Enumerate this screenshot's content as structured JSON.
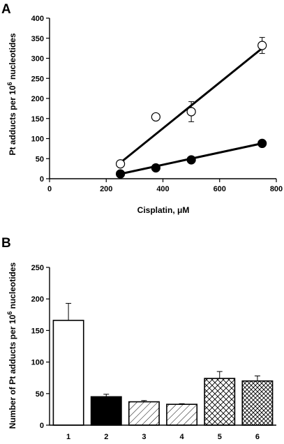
{
  "panel_labels": {
    "a": "A",
    "b": "B"
  },
  "chart_data": [
    {
      "panel": "A",
      "type": "scatter",
      "xlabel": "Cisplatin, μM",
      "ylabel_parts": [
        "Pt adducts per 10",
        "6",
        " nucleotides"
      ],
      "xlim": [
        0,
        800
      ],
      "ylim": [
        0,
        400
      ],
      "xticks": [
        0,
        200,
        400,
        600,
        800
      ],
      "yticks": [
        0,
        50,
        100,
        150,
        200,
        250,
        300,
        350,
        400
      ],
      "grid": false,
      "series": [
        {
          "marker": "open-circle",
          "x": [
            250,
            375,
            500,
            750
          ],
          "y": [
            37,
            154,
            167,
            332
          ],
          "err": [
            0,
            0,
            25,
            20
          ],
          "fit": {
            "x": [
              250,
              750
            ],
            "y": [
              40,
              325
            ]
          }
        },
        {
          "marker": "filled-circle",
          "x": [
            250,
            375,
            500,
            750
          ],
          "y": [
            12,
            27,
            47,
            88
          ],
          "err": [
            0,
            0,
            0,
            0
          ],
          "fit": {
            "x": [
              250,
              750
            ],
            "y": [
              12,
              88
            ]
          }
        }
      ]
    },
    {
      "panel": "B",
      "type": "bar",
      "ylabel_parts": [
        "Number of Pt adducts per 10",
        "6",
        " nucleotides"
      ],
      "categories": [
        "1",
        "2",
        "3",
        "4",
        "5",
        "6"
      ],
      "values": [
        166,
        45,
        37,
        33,
        74,
        70
      ],
      "errors": [
        27,
        4,
        2,
        1,
        11,
        8
      ],
      "fills": [
        "white",
        "black",
        "diagonal",
        "diagonal",
        "crosshatch",
        "crosshatch-dense"
      ],
      "ylim": [
        0,
        250
      ],
      "yticks": [
        0,
        50,
        100,
        150,
        200,
        250
      ],
      "grid": false
    }
  ]
}
